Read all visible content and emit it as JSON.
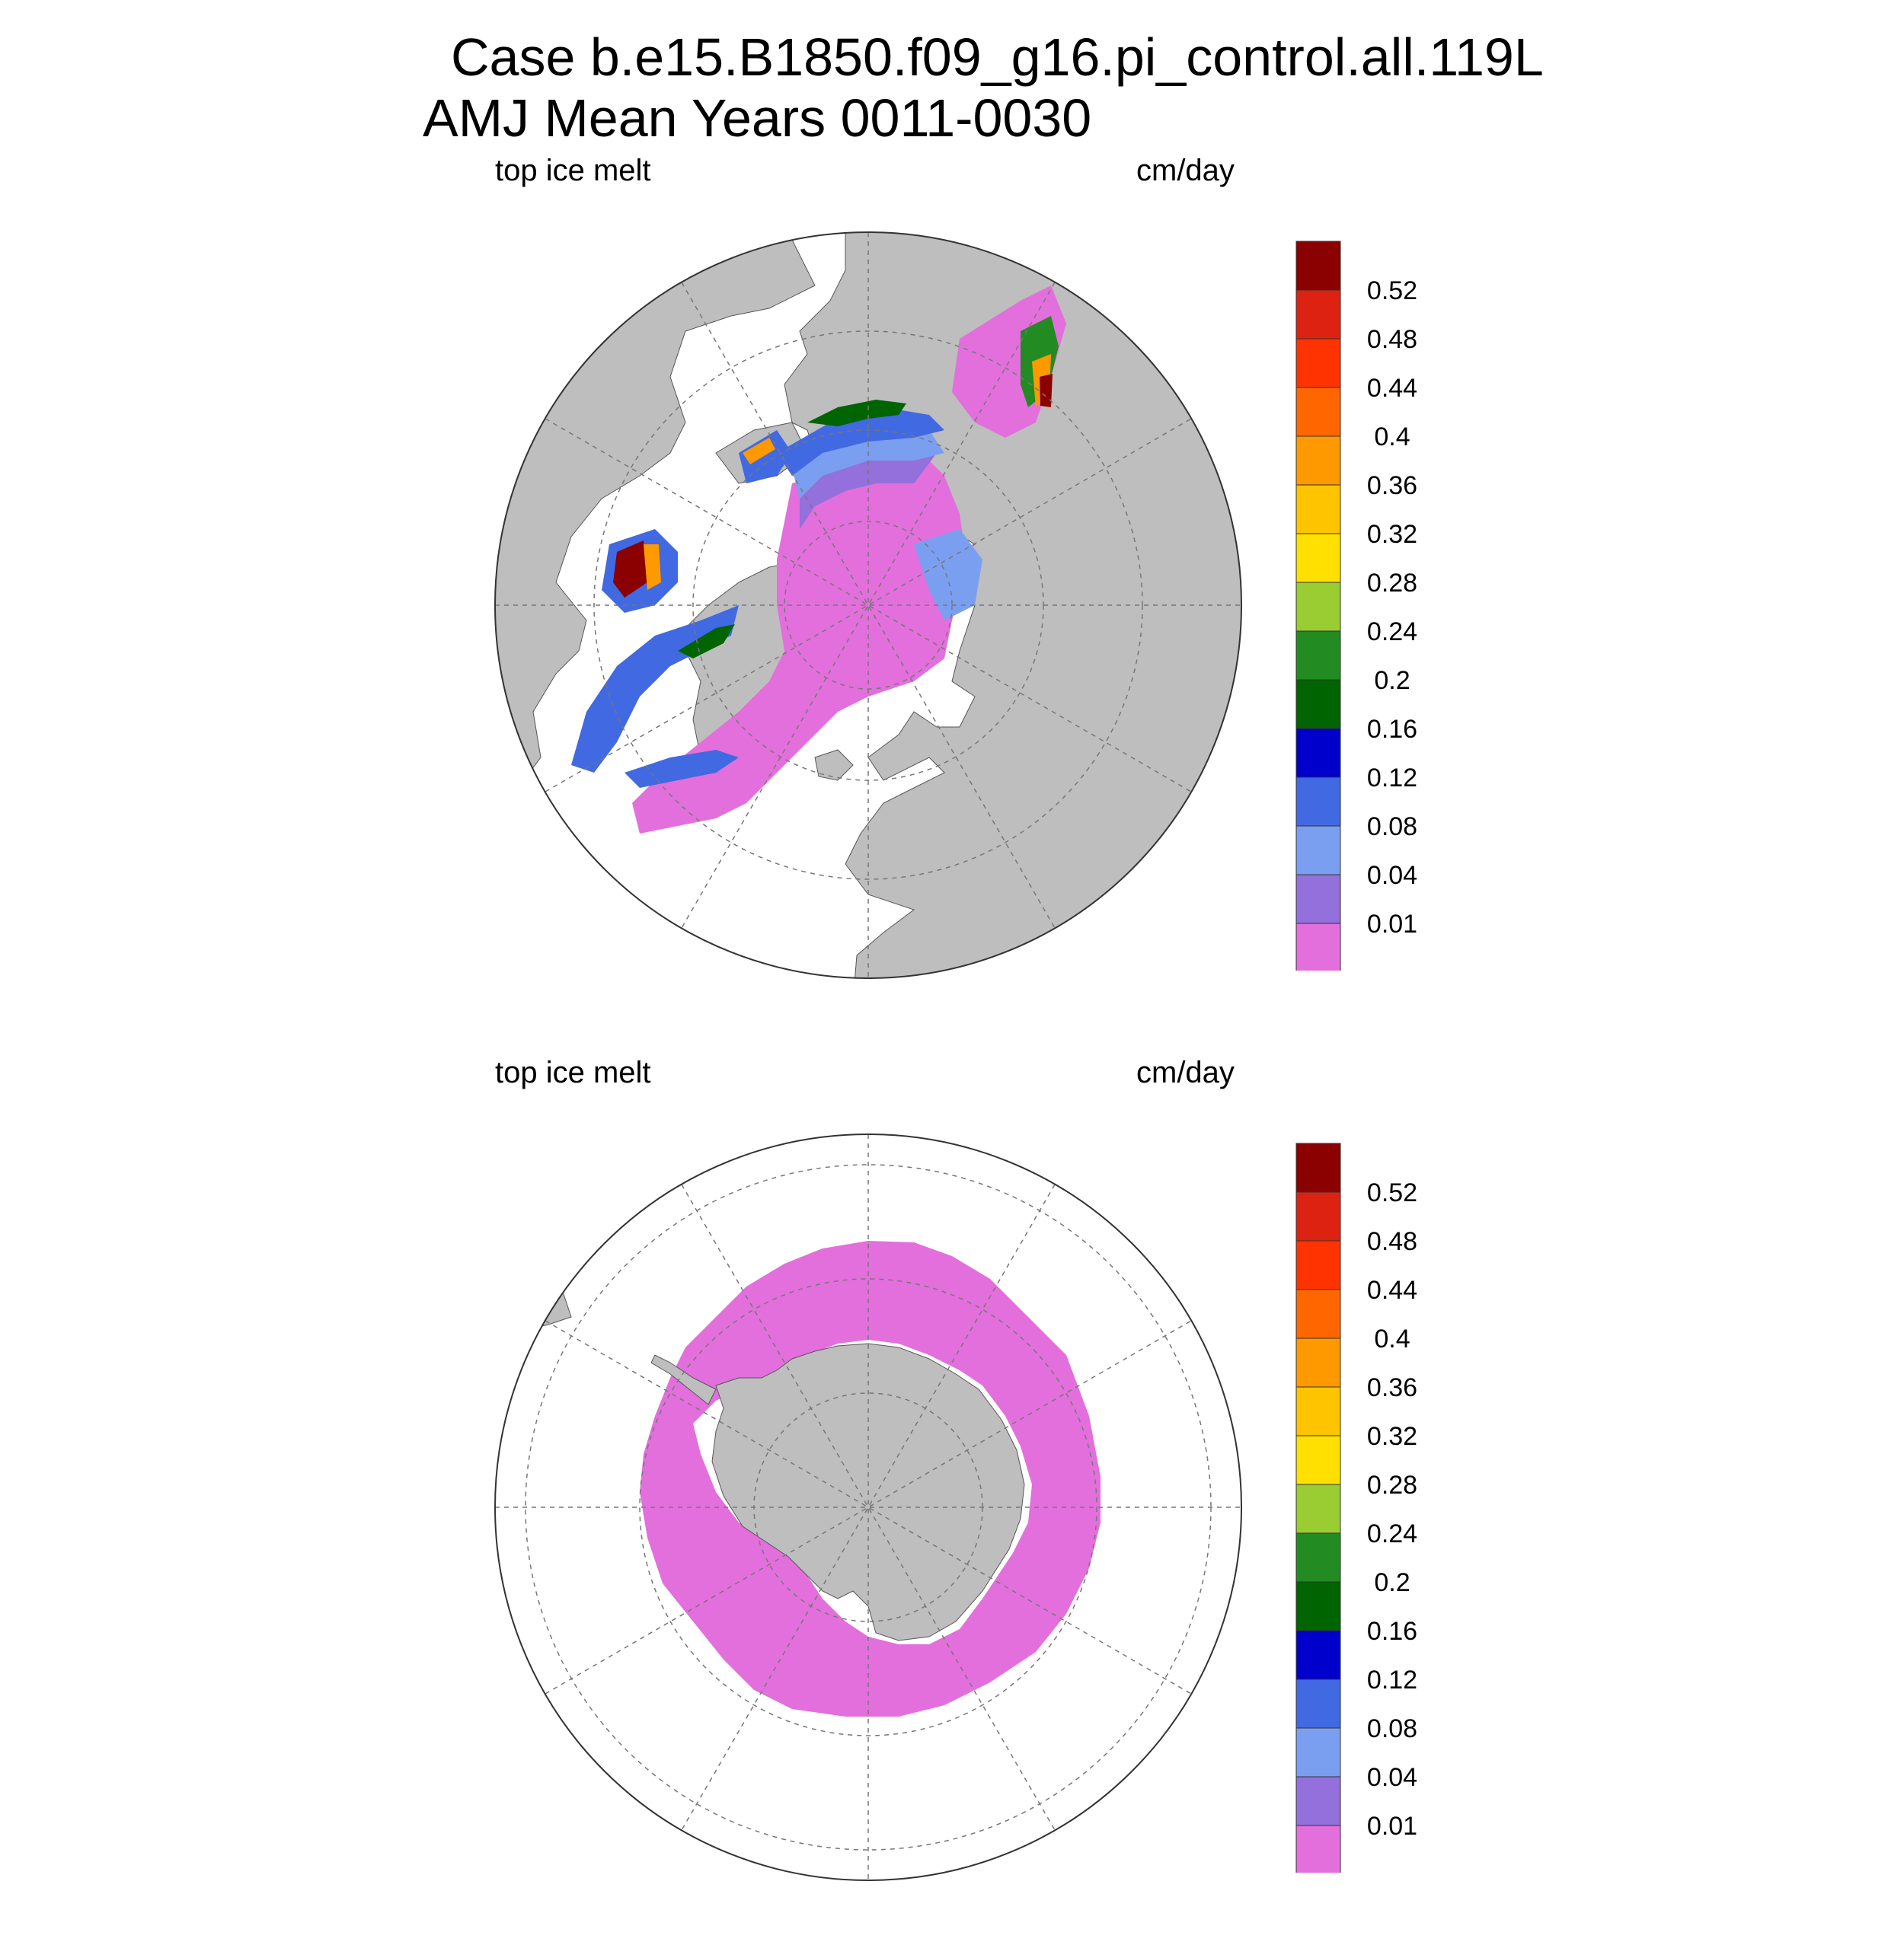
{
  "title": {
    "line1": "Case b.e15.B1850.f09_g16.pi_control.all.119L",
    "line2": "AMJ Mean   Years 0011-0030"
  },
  "panels": [
    {
      "id": "north",
      "left_label": "top ice melt",
      "right_label": "cm/day"
    },
    {
      "id": "south",
      "left_label": "top ice melt",
      "right_label": "cm/day"
    }
  ],
  "colorbar": {
    "colors": [
      "#e26fdc",
      "#9370db",
      "#7b9ff0",
      "#4169e1",
      "#0000cd",
      "#006400",
      "#228b22",
      "#9acd32",
      "#ffe000",
      "#ffc400",
      "#ff9900",
      "#ff6600",
      "#ff3300",
      "#dd2211",
      "#8b0000"
    ],
    "labels": [
      "0.01",
      "0.04",
      "0.08",
      "0.12",
      "0.16",
      "0.2",
      "0.24",
      "0.28",
      "0.32",
      "0.36",
      "0.4",
      "0.44",
      "0.48",
      "0.52"
    ]
  },
  "map_colors": {
    "land": "#bebebe",
    "ocean": "#ffffff",
    "grid": "#777777"
  }
}
